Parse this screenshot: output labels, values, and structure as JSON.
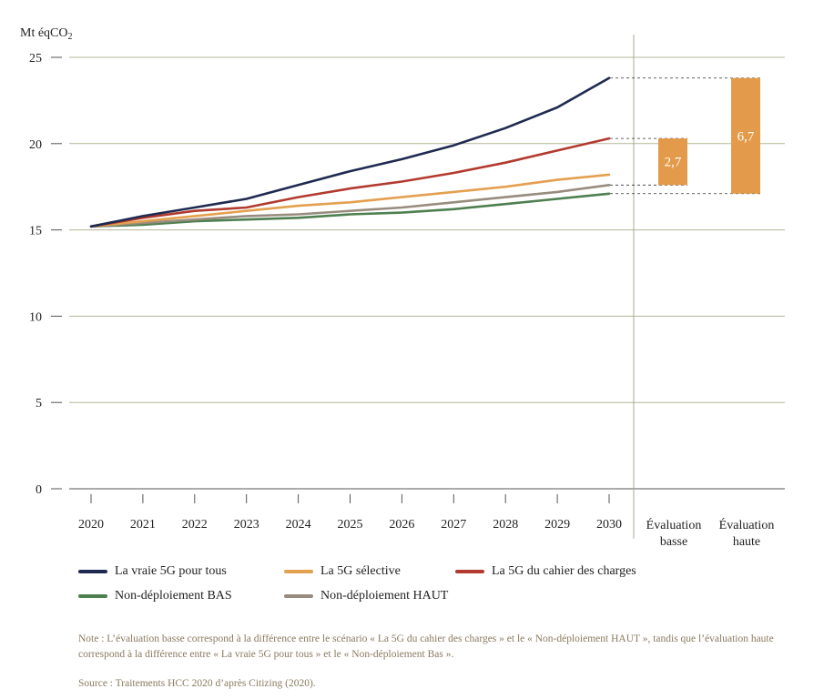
{
  "chart_data": {
    "type": "line",
    "ylabel": "Mt éqCO",
    "ylabel_sub": "2",
    "ylim": [
      0,
      25
    ],
    "yticks": [
      "0",
      "5",
      "10",
      "15",
      "20",
      "25"
    ],
    "x": [
      "2020",
      "2021",
      "2022",
      "2023",
      "2024",
      "2025",
      "2026",
      "2027",
      "2028",
      "2029",
      "2030"
    ],
    "grid": "horizontal",
    "legend_position": "bottom",
    "series": [
      {
        "name": "La vraie 5G pour tous",
        "color": "#1f2a50",
        "values": [
          15.2,
          15.8,
          16.3,
          16.8,
          17.6,
          18.4,
          19.1,
          19.9,
          20.9,
          22.1,
          23.8
        ]
      },
      {
        "name": "La 5G sélective",
        "color": "#e3a04f",
        "values": [
          15.2,
          15.5,
          15.8,
          16.1,
          16.4,
          16.6,
          16.9,
          17.2,
          17.5,
          17.9,
          18.2
        ]
      },
      {
        "name": "La 5G du cahier des charges",
        "color": "#b23a2e",
        "values": [
          15.2,
          15.7,
          16.1,
          16.3,
          16.9,
          17.4,
          17.8,
          18.3,
          18.9,
          19.6,
          20.3
        ]
      },
      {
        "name": "Non-déploiement BAS",
        "color": "#4e7f4f",
        "values": [
          15.2,
          15.3,
          15.5,
          15.6,
          15.7,
          15.9,
          16.0,
          16.2,
          16.5,
          16.8,
          17.1
        ]
      },
      {
        "name": "Non-déploiement HAUT",
        "color": "#978c7e",
        "values": [
          15.2,
          15.4,
          15.6,
          15.8,
          15.9,
          16.1,
          16.3,
          16.6,
          16.9,
          17.2,
          17.6
        ]
      }
    ],
    "evaluations": [
      {
        "label_line1": "Évaluation",
        "label_line2": "basse",
        "low": 17.6,
        "high": 20.3,
        "value_label": "2,7",
        "color": "#e39a4a"
      },
      {
        "label_line1": "Évaluation",
        "label_line2": "haute",
        "low": 17.1,
        "high": 23.8,
        "value_label": "6,7",
        "color": "#e39a4a"
      }
    ]
  },
  "note": "Note : L’évaluation basse correspond à la différence entre le scénario « La 5G du cahier des charges » et le « Non-déploiement HAUT », tandis que l’évaluation haute correspond à la différence entre « La vraie 5G pour tous » et le « Non-déploiement Bas ».",
  "source": "Source : Traitements HCC 2020 d’après Citizing (2020)."
}
